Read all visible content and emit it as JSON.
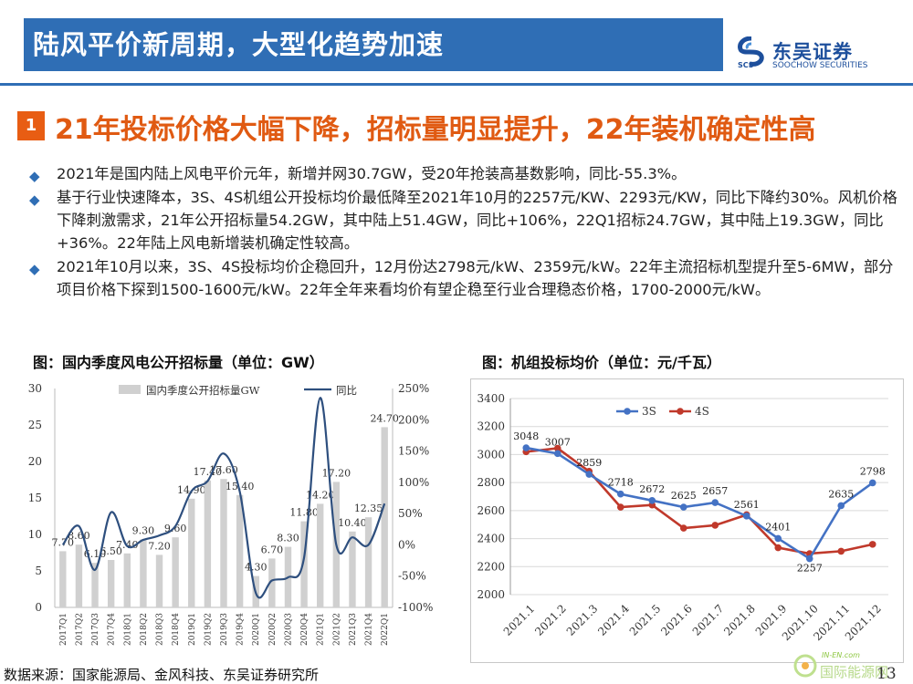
{
  "header": {
    "title": "陆风平价新周期，大型化趋势加速",
    "logo_cn": "东吴证券",
    "logo_en": "SOOCHOW SECURITIES",
    "logo_abbr": "SCS"
  },
  "section": {
    "number": "1",
    "heading": "21年投标价格大幅下降，招标量明显提升，22年装机确定性高"
  },
  "bullets": [
    "2021年是国内陆上风电平价元年，新增并网30.7GW，受20年抢装高基数影响，同比-55.3%。",
    "基于行业快速降本，3S、4S机组公开投标均价最低降至2021年10月的2257元/KW、2293元/KW，同比下降约30%。风机价格下降刺激需求，21年公开招标量54.2GW，其中陆上51.4GW，同比+106%，22Q1招标24.7GW，其中陆上19.3GW，同比+36%。22年陆上风电新增装机确定性较高。",
    "2021年10月以来，3S、4S投标均价企稳回升，12月份达2798元/kW、2359元/kW。22年主流招标机型提升至5-6MW，部分项目价格下探到1500-1600元/kW。22年全年来看均价有望企稳至行业合理稳态价格，1700-2000元/kW。"
  ],
  "figures": {
    "left_title": "图：国内季度风电公开招标量（单位：GW）",
    "right_title": "图：机组投标均价（单位：元/千瓦）"
  },
  "chart_data": [
    {
      "type": "bar",
      "title": "图：国内季度风电公开招标量（单位：GW）",
      "categories": [
        "2017Q1",
        "2017Q2",
        "2017Q3",
        "2017Q4",
        "2018Q1",
        "2018Q2",
        "2018Q3",
        "2018Q4",
        "2019Q1",
        "2019Q2",
        "2019Q3",
        "2019Q4",
        "2020Q1",
        "2020Q2",
        "2020Q3",
        "2020Q4",
        "2021Q1",
        "2021Q2",
        "2021Q3",
        "2021Q4",
        "2022Q1"
      ],
      "series": [
        {
          "name": "国内季度公开招标量GW",
          "type": "bar",
          "axis": "left",
          "values": [
            7.7,
            8.6,
            6.1,
            6.5,
            7.4,
            9.3,
            7.2,
            9.6,
            14.9,
            17.4,
            17.6,
            15.4,
            4.3,
            6.7,
            8.3,
            11.8,
            14.2,
            17.2,
            10.4,
            12.35,
            24.7
          ],
          "labels": [
            "7.70",
            "8.60",
            "6.10",
            "6.50",
            "7.40",
            "9.30",
            "7.20",
            "9.60",
            "14.90",
            "17.40",
            "17.60",
            "15.40",
            "4.30",
            "6.70",
            "8.30",
            "11.80",
            "14.20",
            "17.20",
            "10.40",
            "12.35",
            "24.70"
          ]
        },
        {
          "name": "同比",
          "type": "line",
          "axis": "right",
          "values": [
            0,
            30,
            -40,
            52,
            -2,
            8,
            15,
            30,
            86,
            102,
            146,
            85,
            -77,
            -57,
            -52,
            -20,
            235,
            0,
            12,
            0,
            66
          ]
        }
      ],
      "ylim": [
        0,
        30
      ],
      "yticks": [
        "0",
        "5",
        "10",
        "15",
        "20",
        "25",
        "30"
      ],
      "y2lim": [
        -100,
        250
      ],
      "y2ticks": [
        "-100%",
        "-50%",
        "0%",
        "50%",
        "100%",
        "150%",
        "200%",
        "250%"
      ],
      "legend": "top",
      "grid": false
    },
    {
      "type": "line",
      "title": "图：机组投标均价（单位：元/千瓦）",
      "categories": [
        "2021.1",
        "2021.2",
        "2021.3",
        "2021.4",
        "2021.5",
        "2021.6",
        "2021.7",
        "2021.8",
        "2021.9",
        "2021.10",
        "2021.11",
        "2021.12"
      ],
      "series": [
        {
          "name": "3S",
          "color": "#4472c4",
          "values": [
            3048,
            3007,
            2859,
            2718,
            2672,
            2625,
            2657,
            2561,
            2401,
            2257,
            2635,
            2798
          ],
          "labels": [
            "3048",
            "3007",
            "2859",
            "2718",
            "2672",
            "2625",
            "2657",
            "2561",
            "2401",
            "2257",
            "2635",
            "2798"
          ]
        },
        {
          "name": "4S",
          "color": "#c0392b",
          "values": [
            3020,
            3045,
            2880,
            2625,
            2640,
            2475,
            2495,
            2570,
            2335,
            2293,
            2310,
            2359
          ]
        }
      ],
      "ylim": [
        2000,
        3400
      ],
      "yticks": [
        "2000",
        "2200",
        "2400",
        "2600",
        "2800",
        "3000",
        "3200",
        "3400"
      ],
      "legend": "top",
      "grid": true
    }
  ],
  "footer": {
    "source": "数据来源：国家能源局、金风科技、东吴证券研究所",
    "page": "13",
    "watermark_en": "IN-EN.com",
    "watermark_cn": "国际能源网"
  }
}
